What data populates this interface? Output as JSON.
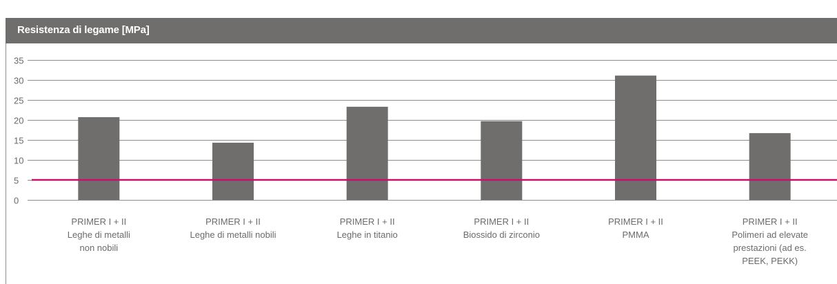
{
  "header": {
    "title": "Resistenza di legame [MPa]"
  },
  "colors": {
    "bar": "#6f6e6c",
    "reference_line": "#c4126e",
    "grid": "#8c8c8c",
    "header_bg": "#6f6e6c"
  },
  "chart_data": {
    "type": "bar",
    "title": "Resistenza di legame [MPa]",
    "ylim": [
      0,
      35
    ],
    "yticks": [
      0,
      5,
      10,
      15,
      20,
      25,
      30,
      35
    ],
    "grid": true,
    "categories": [
      [
        "PRIMER I + II",
        "Leghe di metalli",
        "non nobili"
      ],
      [
        "PRIMER I + II",
        "Leghe di metalli nobili"
      ],
      [
        "PRIMER I + II",
        "Leghe in titanio"
      ],
      [
        "PRIMER I + II",
        "Biossido di zirconio"
      ],
      [
        "PRIMER I + II",
        "PMMA"
      ],
      [
        "PRIMER I + II",
        "Polimeri ad elevate",
        "prestazioni (ad es.",
        "PEEK, PEKK)"
      ]
    ],
    "values": [
      20.7,
      14.3,
      23.3,
      19.7,
      31.1,
      16.7
    ],
    "reference_line": 5
  }
}
